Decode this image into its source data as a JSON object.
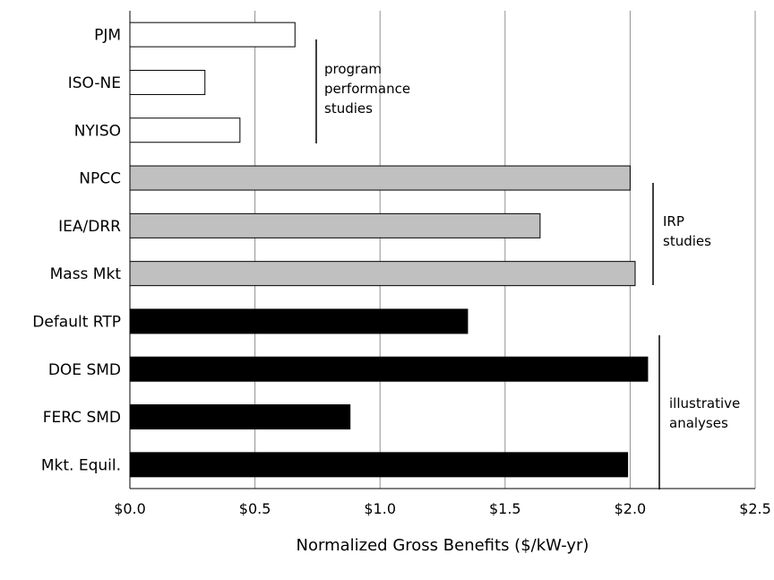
{
  "chart_data": {
    "type": "bar",
    "orientation": "horizontal",
    "title": "",
    "xlabel": "Normalized Gross Benefits ($/kW-yr)",
    "ylabel": "",
    "xlim": [
      0,
      2.5
    ],
    "xticks": [
      0,
      0.5,
      1.0,
      1.5,
      2.0,
      2.5
    ],
    "xtick_labels": [
      "$0.0",
      "$0.5",
      "$1.0",
      "$1.5",
      "$2.0",
      "$2.5"
    ],
    "grid": "vertical",
    "legend": "none",
    "categories": [
      "PJM",
      "ISO-NE",
      "NYISO",
      "NPCC",
      "IEA/DRR",
      "Mass Mkt",
      "Default RTP",
      "DOE SMD",
      "FERC SMD",
      "Mkt. Equil."
    ],
    "values": [
      0.66,
      0.3,
      0.44,
      2.0,
      1.64,
      2.02,
      1.35,
      2.07,
      0.88,
      1.99
    ],
    "groups": [
      {
        "label": [
          "program",
          "performance",
          "studies"
        ],
        "categories": [
          "PJM",
          "ISO-NE",
          "NYISO"
        ],
        "fill": "#ffffff"
      },
      {
        "label": [
          "IRP",
          "studies"
        ],
        "categories": [
          "NPCC",
          "IEA/DRR",
          "Mass Mkt"
        ],
        "fill": "#c0c0c0"
      },
      {
        "label": [
          "illustrative",
          "analyses"
        ],
        "categories": [
          "Default RTP",
          "DOE SMD",
          "FERC SMD",
          "Mkt. Equil."
        ],
        "fill": "#000000"
      }
    ]
  }
}
